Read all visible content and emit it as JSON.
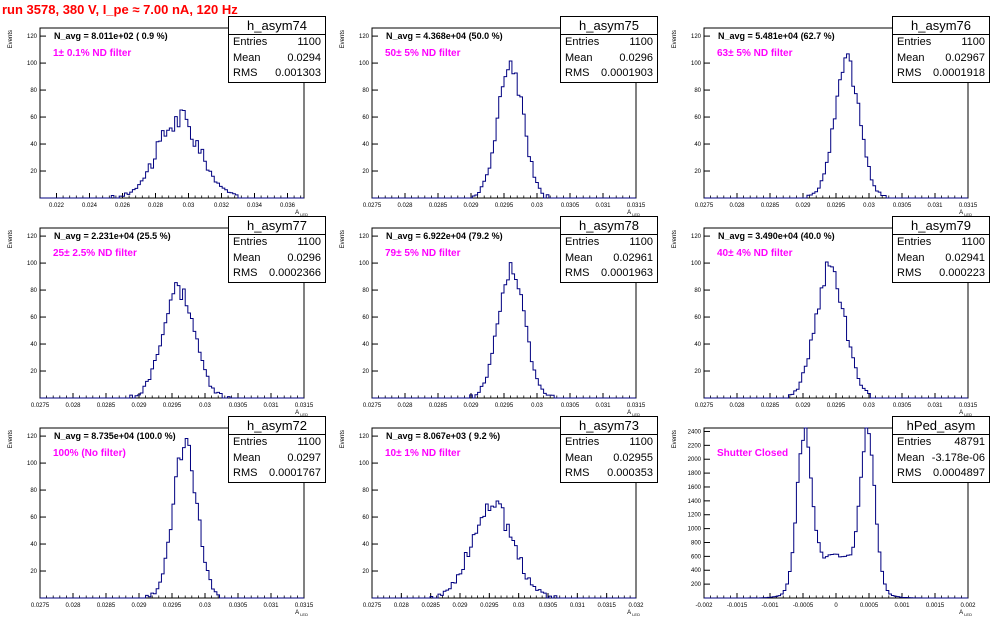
{
  "title": "run 3578,   380 V, I_pe ≈ 7.00 nA, 120 Hz",
  "stat_labels": {
    "entries": "Entries",
    "mean": "Mean",
    "rms": "RMS"
  },
  "colors": {
    "title": "#ff0000",
    "annotation": "#ff00ff",
    "histogram": "#000080"
  },
  "chart_data": [
    {
      "type": "histogram",
      "name": "h_asym74",
      "navg": "N_avg = 8.011e+02 ( 0.9 %)",
      "filter": "1± 0.1% ND filter",
      "entries": "1100",
      "mean": "0.0294",
      "rms": "0.001303",
      "xlabel": "A_LED",
      "ylabel": "Events",
      "xlim": [
        0.021,
        0.037
      ],
      "ylim": [
        0,
        126
      ],
      "xticks": [
        "0.022",
        "0.024",
        "0.026",
        "0.028",
        "0.03",
        "0.032",
        "0.034",
        "0.036"
      ],
      "yticks": [
        "20",
        "40",
        "60",
        "80",
        "100",
        "120"
      ],
      "peaks": [
        {
          "center": 0.0294,
          "sigma": 0.0013,
          "height": 58
        }
      ],
      "noise": 0.18
    },
    {
      "type": "histogram",
      "name": "h_asym75",
      "navg": "N_avg = 4.368e+04 (50.0 %)",
      "filter": "50± 5% ND filter",
      "entries": "1100",
      "mean": "0.0296",
      "rms": "0.0001903",
      "xlabel": "A_LED",
      "ylabel": "Events",
      "xlim": [
        0.0275,
        0.0315
      ],
      "ylim": [
        0,
        126
      ],
      "xticks": [
        "0.0275",
        "0.028",
        "0.0285",
        "0.029",
        "0.0295",
        "0.03",
        "0.0305",
        "0.031",
        "0.0315"
      ],
      "yticks": [
        "20",
        "40",
        "60",
        "80",
        "100",
        "120"
      ],
      "peaks": [
        {
          "center": 0.0296,
          "sigma": 0.00019,
          "height": 100
        }
      ],
      "noise": 0.07
    },
    {
      "type": "histogram",
      "name": "h_asym76",
      "navg": "N_avg = 5.481e+04 (62.7 %)",
      "filter": "63± 5% ND filter",
      "entries": "1100",
      "mean": "0.02967",
      "rms": "0.0001918",
      "xlabel": "A_LED",
      "ylabel": "Events",
      "xlim": [
        0.0275,
        0.0315
      ],
      "ylim": [
        0,
        126
      ],
      "xticks": [
        "0.0275",
        "0.028",
        "0.0285",
        "0.029",
        "0.0295",
        "0.03",
        "0.0305",
        "0.031",
        "0.0315"
      ],
      "yticks": [
        "20",
        "40",
        "60",
        "80",
        "100",
        "120"
      ],
      "peaks": [
        {
          "center": 0.02967,
          "sigma": 0.00019,
          "height": 100
        }
      ],
      "noise": 0.07
    },
    {
      "type": "histogram",
      "name": "h_asym77",
      "navg": "N_avg = 2.231e+04 (25.5 %)",
      "filter": "25± 2.5% ND filter",
      "entries": "1100",
      "mean": "0.0296",
      "rms": "0.0002366",
      "xlabel": "A_LED",
      "ylabel": "Events",
      "xlim": [
        0.0275,
        0.0315
      ],
      "ylim": [
        0,
        126
      ],
      "xticks": [
        "0.0275",
        "0.028",
        "0.0285",
        "0.029",
        "0.0295",
        "0.03",
        "0.0305",
        "0.031",
        "0.0315"
      ],
      "yticks": [
        "20",
        "40",
        "60",
        "80",
        "100",
        "120"
      ],
      "peaks": [
        {
          "center": 0.0296,
          "sigma": 0.00024,
          "height": 80
        }
      ],
      "noise": 0.1
    },
    {
      "type": "histogram",
      "name": "h_asym78",
      "navg": "N_avg = 6.922e+04 (79.2 %)",
      "filter": "79± 5% ND filter",
      "entries": "1100",
      "mean": "0.02961",
      "rms": "0.0001963",
      "xlabel": "A_LED",
      "ylabel": "Events",
      "xlim": [
        0.0275,
        0.0315
      ],
      "ylim": [
        0,
        126
      ],
      "xticks": [
        "0.0275",
        "0.028",
        "0.0285",
        "0.029",
        "0.0295",
        "0.03",
        "0.0305",
        "0.031",
        "0.0315"
      ],
      "yticks": [
        "20",
        "40",
        "60",
        "80",
        "100",
        "120"
      ],
      "peaks": [
        {
          "center": 0.02961,
          "sigma": 0.0002,
          "height": 97
        }
      ],
      "noise": 0.07
    },
    {
      "type": "histogram",
      "name": "h_asym79",
      "navg": "N_avg = 3.490e+04 (40.0 %)",
      "filter": "40± 4% ND filter",
      "entries": "1100",
      "mean": "0.02941",
      "rms": "0.000223",
      "xlabel": "A_LED",
      "ylabel": "Events",
      "xlim": [
        0.0275,
        0.0315
      ],
      "ylim": [
        0,
        126
      ],
      "xticks": [
        "0.0275",
        "0.028",
        "0.0285",
        "0.029",
        "0.0295",
        "0.03",
        "0.0305",
        "0.031",
        "0.0315"
      ],
      "yticks": [
        "20",
        "40",
        "60",
        "80",
        "100",
        "120"
      ],
      "peaks": [
        {
          "center": 0.02941,
          "sigma": 0.00022,
          "height": 96
        }
      ],
      "noise": 0.08
    },
    {
      "type": "histogram",
      "name": "h_asym72",
      "navg": "N_avg = 8.735e+04 (100.0 %)",
      "filter": "100% (No filter)",
      "entries": "1100",
      "mean": "0.0297",
      "rms": "0.0001767",
      "xlabel": "A_LED",
      "ylabel": "Events",
      "xlim": [
        0.0275,
        0.0315
      ],
      "ylim": [
        0,
        126
      ],
      "xticks": [
        "0.0275",
        "0.028",
        "0.0285",
        "0.029",
        "0.0295",
        "0.03",
        "0.0305",
        "0.031",
        "0.0315"
      ],
      "yticks": [
        "20",
        "40",
        "60",
        "80",
        "100",
        "120"
      ],
      "peaks": [
        {
          "center": 0.0297,
          "sigma": 0.00018,
          "height": 115
        }
      ],
      "noise": 0.08
    },
    {
      "type": "histogram",
      "name": "h_asym73",
      "navg": "N_avg = 8.067e+03 ( 9.2 %)",
      "filter": "10± 1% ND filter",
      "entries": "1100",
      "mean": "0.02955",
      "rms": "0.000353",
      "xlabel": "A_LED",
      "ylabel": "Events",
      "xlim": [
        0.0275,
        0.032
      ],
      "ylim": [
        0,
        126
      ],
      "xticks": [
        "0.0275",
        "0.028",
        "0.0285",
        "0.029",
        "0.0295",
        "0.03",
        "0.0305",
        "0.031",
        "0.0315",
        "0.032"
      ],
      "yticks": [
        "20",
        "40",
        "60",
        "80",
        "100",
        "120"
      ],
      "peaks": [
        {
          "center": 0.02955,
          "sigma": 0.00035,
          "height": 68
        }
      ],
      "noise": 0.15
    },
    {
      "type": "histogram",
      "name": "hPed_asym",
      "navg": "",
      "filter": "Shutter Closed",
      "entries": "48791",
      "mean": "-3.178e-06",
      "rms": "0.0004897",
      "xlabel": "A_LED",
      "ylabel": "Events",
      "xlim": [
        -0.002,
        0.002
      ],
      "ylim": [
        0,
        2450
      ],
      "xticks": [
        "-0.002",
        "-0.0015",
        "-0.001",
        "-0.0005",
        "0",
        "0.0005",
        "0.001",
        "0.0015",
        "0.002"
      ],
      "yticks": [
        "200",
        "400",
        "600",
        "800",
        "1000",
        "1200",
        "1400",
        "1600",
        "1800",
        "2000",
        "2200",
        "2400"
      ],
      "peaks": [
        {
          "center": -0.00048,
          "sigma": 0.00011,
          "height": 2200
        },
        {
          "center": 0.00048,
          "sigma": 0.00011,
          "height": 2200
        },
        {
          "center": 0.0,
          "sigma": 0.00035,
          "height": 620
        }
      ],
      "noise": 0.05
    }
  ]
}
